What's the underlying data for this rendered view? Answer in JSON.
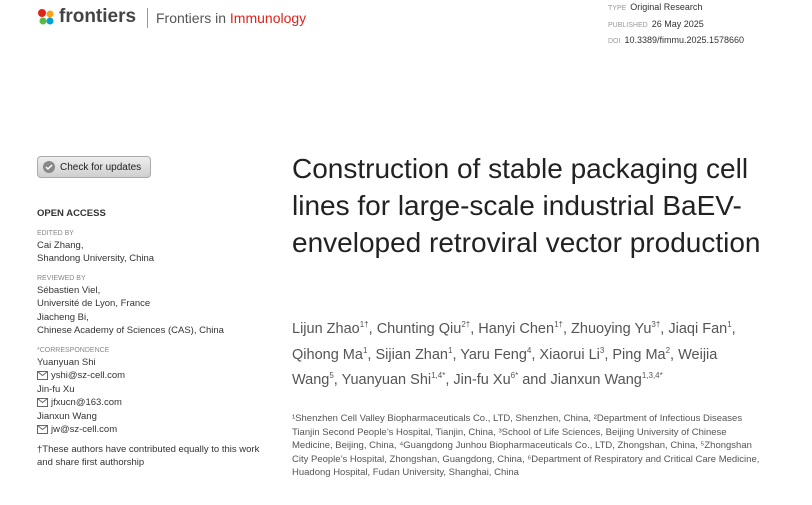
{
  "header": {
    "logo": "frontiers",
    "journal_prefix": "Frontiers in",
    "journal_name": "Immunology"
  },
  "meta": [
    {
      "label": "TYPE",
      "value": "Original Research"
    },
    {
      "label": "PUBLISHED",
      "value": "26 May 2025"
    },
    {
      "label": "DOI",
      "value": "10.3389/fimmu.2025.1578660"
    }
  ],
  "check_updates": "Check for updates",
  "sidebar": {
    "open_access": "OPEN ACCESS",
    "edited_by": {
      "label": "EDITED BY",
      "lines": [
        "Cai Zhang,",
        "Shandong University, China"
      ]
    },
    "reviewed_by": {
      "label": "REVIEWED BY",
      "lines": [
        "Sébastien Viel,",
        "Université de Lyon, France",
        "Jiacheng Bi,",
        "Chinese Academy of Sciences (CAS), China"
      ]
    },
    "correspondence": {
      "label": "*CORRESPONDENCE",
      "entries": [
        {
          "name": "Yuanyuan Shi",
          "email": "yshi@sz-cell.com"
        },
        {
          "name": "Jin-fu Xu",
          "email": "jfxucn@163.com"
        },
        {
          "name": "Jianxun Wang",
          "email": "jw@sz-cell.com"
        }
      ]
    },
    "footnote": "†These authors have contributed equally to this work and share first authorship"
  },
  "title": "Construction of stable packaging cell lines for large-scale industrial BaEV-enveloped retroviral vector production",
  "authors": [
    {
      "name": "Lijun Zhao",
      "sup": "1†",
      "sep": ","
    },
    {
      "name": "Chunting Qiu",
      "sup": "2†",
      "sep": ","
    },
    {
      "name": "Hanyi Chen",
      "sup": "1†",
      "sep": ","
    },
    {
      "name": "Zhuoying Yu",
      "sup": "3†",
      "sep": ","
    },
    {
      "name": "Jiaqi Fan",
      "sup": "1",
      "sep": ","
    },
    {
      "name": "Qihong Ma",
      "sup": "1",
      "sep": ","
    },
    {
      "name": "Sijian Zhan",
      "sup": "1",
      "sep": ","
    },
    {
      "name": "Yaru Feng",
      "sup": "4",
      "sep": ","
    },
    {
      "name": "Xiaorui Li",
      "sup": "3",
      "sep": ","
    },
    {
      "name": "Ping Ma",
      "sup": "2",
      "sep": ","
    },
    {
      "name": "Weijia Wang",
      "sup": "5",
      "sep": ","
    },
    {
      "name": "Yuanyuan Shi",
      "sup": "1,4*",
      "sep": ","
    },
    {
      "name": "Jin-fu Xu",
      "sup": "6*"
    },
    {
      "name": "Jianxun Wang",
      "sup": "1,3,4*",
      "prefix": "and"
    }
  ],
  "affiliations": "¹Shenzhen Cell Valley Biopharmaceuticals Co., LTD, Shenzhen, China, ²Department of Infectious Diseases Tianjin Second People’s Hospital, Tianjin, China, ³School of Life Sciences, Beijing University of Chinese Medicine, Beijing, China, ⁴Guangdong Junhou Biopharmaceuticals Co., LTD, Zhongshan, China, ⁵Zhongshan City People’s Hospital, Zhongshan, Guangdong, China, ⁶Department of Respiratory and Critical Care Medicine, Huadong Hospital, Fudan University, Shanghai, China"
}
